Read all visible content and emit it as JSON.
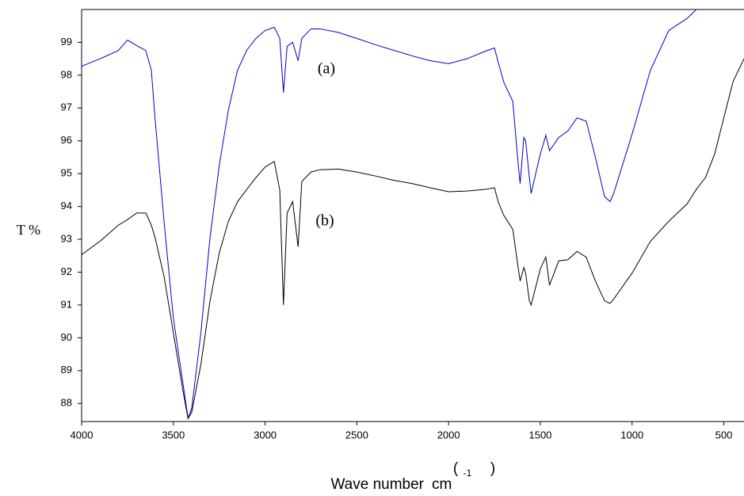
{
  "chart_data": {
    "type": "line",
    "y_label": "T %",
    "x_label": "Wave number",
    "x_unit": "cm",
    "x_unit_open": "(",
    "x_unit_exp": "-1",
    "x_unit_close": ")",
    "x": [
      4000,
      3900,
      3800,
      3750,
      3700,
      3650,
      3620,
      3600,
      3550,
      3500,
      3450,
      3420,
      3400,
      3350,
      3300,
      3250,
      3200,
      3150,
      3100,
      3050,
      3000,
      2950,
      2920,
      2900,
      2880,
      2850,
      2820,
      2800,
      2750,
      2700,
      2600,
      2500,
      2400,
      2300,
      2200,
      2100,
      2000,
      1900,
      1800,
      1750,
      1730,
      1700,
      1650,
      1620,
      1610,
      1590,
      1580,
      1560,
      1550,
      1500,
      1470,
      1450,
      1400,
      1350,
      1300,
      1250,
      1200,
      1150,
      1120,
      1100,
      1000,
      900,
      800,
      700,
      650,
      600,
      550,
      500,
      450,
      390
    ],
    "series": [
      {
        "name": "(a)",
        "color": "#0000cc",
        "values": [
          98.27,
          98.5,
          98.75,
          99.07,
          98.9,
          98.75,
          98.15,
          96.7,
          93.5,
          90.6,
          88.7,
          87.55,
          87.85,
          90.15,
          93.06,
          95.24,
          96.94,
          98.15,
          98.76,
          99.12,
          99.36,
          99.46,
          99.12,
          97.47,
          98.88,
          99,
          98.44,
          99.12,
          99.41,
          99.41,
          99.3,
          99.12,
          98.93,
          98.76,
          98.59,
          98.44,
          98.35,
          98.5,
          98.73,
          98.83,
          98.4,
          97.8,
          97.2,
          95.24,
          94.7,
          96.1,
          96,
          94.9,
          94.4,
          95.6,
          96.17,
          95.7,
          96.1,
          96.3,
          96.7,
          96.6,
          95.5,
          94.3,
          94.15,
          94.4,
          96.2,
          98.15,
          99.36,
          99.73,
          100,
          null,
          null,
          null,
          null,
          null
        ]
      },
      {
        "name": "(b)",
        "color": "#000000",
        "values": [
          92.53,
          92.94,
          93.43,
          93.6,
          93.8,
          93.8,
          93.43,
          93.06,
          91.85,
          90.15,
          88.46,
          87.54,
          87.73,
          89.19,
          91.13,
          92.58,
          93.55,
          94.15,
          94.52,
          94.88,
          95.2,
          95.37,
          94.5,
          91,
          93.8,
          94.15,
          92.77,
          94.76,
          95.05,
          95.12,
          95.14,
          95.05,
          94.93,
          94.8,
          94.7,
          94.57,
          94.45,
          94.47,
          94.52,
          94.57,
          94.15,
          93.74,
          93.3,
          92.1,
          91.73,
          92.14,
          91.97,
          91.13,
          91,
          92.1,
          92.46,
          91.6,
          92.34,
          92.38,
          92.63,
          92.46,
          91.73,
          91.13,
          91.05,
          91.18,
          91.97,
          92.94,
          93.55,
          94.08,
          94.52,
          94.88,
          95.6,
          96.7,
          97.8,
          98.5
        ]
      }
    ],
    "xlim": [
      4000,
      390
    ],
    "ylim": [
      87.45,
      100
    ],
    "xticks": [
      4000,
      3500,
      3000,
      2500,
      2000,
      1500,
      1000,
      500
    ],
    "yticks": [
      88,
      89,
      90,
      91,
      92,
      93,
      94,
      95,
      96,
      97,
      98,
      99
    ]
  }
}
